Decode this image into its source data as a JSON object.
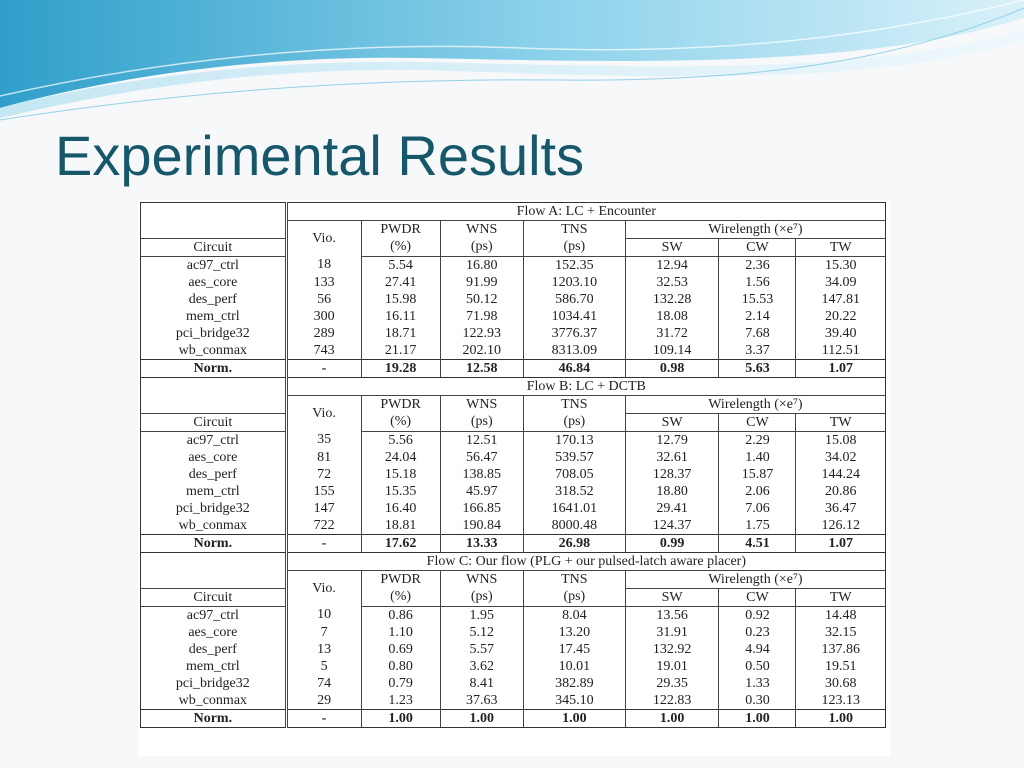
{
  "slide": {
    "title": "Experimental Results"
  },
  "colors": {
    "title": "#16576a",
    "wave_dark": "#3aa7cf",
    "wave_light": "#bfe5f3"
  },
  "table": {
    "column_headers": {
      "circuit": "Circuit",
      "vio": "Vio.",
      "pwdr": "PWDR",
      "pwdr_unit": "(%)",
      "wns": "WNS",
      "wns_unit": "(ps)",
      "tns": "TNS",
      "tns_unit": "(ps)",
      "wirelength": "Wirelength (×e⁷)",
      "sw": "SW",
      "cw": "CW",
      "tw": "TW"
    },
    "norm_label": "Norm.",
    "flows": [
      {
        "title": "Flow A: LC + Encounter",
        "rows": [
          [
            "ac97_ctrl",
            "18",
            "5.54",
            "16.80",
            "152.35",
            "12.94",
            "2.36",
            "15.30"
          ],
          [
            "aes_core",
            "133",
            "27.41",
            "91.99",
            "1203.10",
            "32.53",
            "1.56",
            "34.09"
          ],
          [
            "des_perf",
            "56",
            "15.98",
            "50.12",
            "586.70",
            "132.28",
            "15.53",
            "147.81"
          ],
          [
            "mem_ctrl",
            "300",
            "16.11",
            "71.98",
            "1034.41",
            "18.08",
            "2.14",
            "20.22"
          ],
          [
            "pci_bridge32",
            "289",
            "18.71",
            "122.93",
            "3776.37",
            "31.72",
            "7.68",
            "39.40"
          ],
          [
            "wb_conmax",
            "743",
            "21.17",
            "202.10",
            "8313.09",
            "109.14",
            "3.37",
            "112.51"
          ]
        ],
        "norm": [
          "-",
          "19.28",
          "12.58",
          "46.84",
          "0.98",
          "5.63",
          "1.07"
        ]
      },
      {
        "title": "Flow B: LC + DCTB",
        "rows": [
          [
            "ac97_ctrl",
            "35",
            "5.56",
            "12.51",
            "170.13",
            "12.79",
            "2.29",
            "15.08"
          ],
          [
            "aes_core",
            "81",
            "24.04",
            "56.47",
            "539.57",
            "32.61",
            "1.40",
            "34.02"
          ],
          [
            "des_perf",
            "72",
            "15.18",
            "138.85",
            "708.05",
            "128.37",
            "15.87",
            "144.24"
          ],
          [
            "mem_ctrl",
            "155",
            "15.35",
            "45.97",
            "318.52",
            "18.80",
            "2.06",
            "20.86"
          ],
          [
            "pci_bridge32",
            "147",
            "16.40",
            "166.85",
            "1641.01",
            "29.41",
            "7.06",
            "36.47"
          ],
          [
            "wb_conmax",
            "722",
            "18.81",
            "190.84",
            "8000.48",
            "124.37",
            "1.75",
            "126.12"
          ]
        ],
        "norm": [
          "-",
          "17.62",
          "13.33",
          "26.98",
          "0.99",
          "4.51",
          "1.07"
        ]
      },
      {
        "title": "Flow C: Our flow (PLG + our pulsed-latch aware placer)",
        "rows": [
          [
            "ac97_ctrl",
            "10",
            "0.86",
            "1.95",
            "8.04",
            "13.56",
            "0.92",
            "14.48"
          ],
          [
            "aes_core",
            "7",
            "1.10",
            "5.12",
            "13.20",
            "31.91",
            "0.23",
            "32.15"
          ],
          [
            "des_perf",
            "13",
            "0.69",
            "5.57",
            "17.45",
            "132.92",
            "4.94",
            "137.86"
          ],
          [
            "mem_ctrl",
            "5",
            "0.80",
            "3.62",
            "10.01",
            "19.01",
            "0.50",
            "19.51"
          ],
          [
            "pci_bridge32",
            "74",
            "0.79",
            "8.41",
            "382.89",
            "29.35",
            "1.33",
            "30.68"
          ],
          [
            "wb_conmax",
            "29",
            "1.23",
            "37.63",
            "345.10",
            "122.83",
            "0.30",
            "123.13"
          ]
        ],
        "norm": [
          "-",
          "1.00",
          "1.00",
          "1.00",
          "1.00",
          "1.00",
          "1.00"
        ]
      }
    ]
  }
}
